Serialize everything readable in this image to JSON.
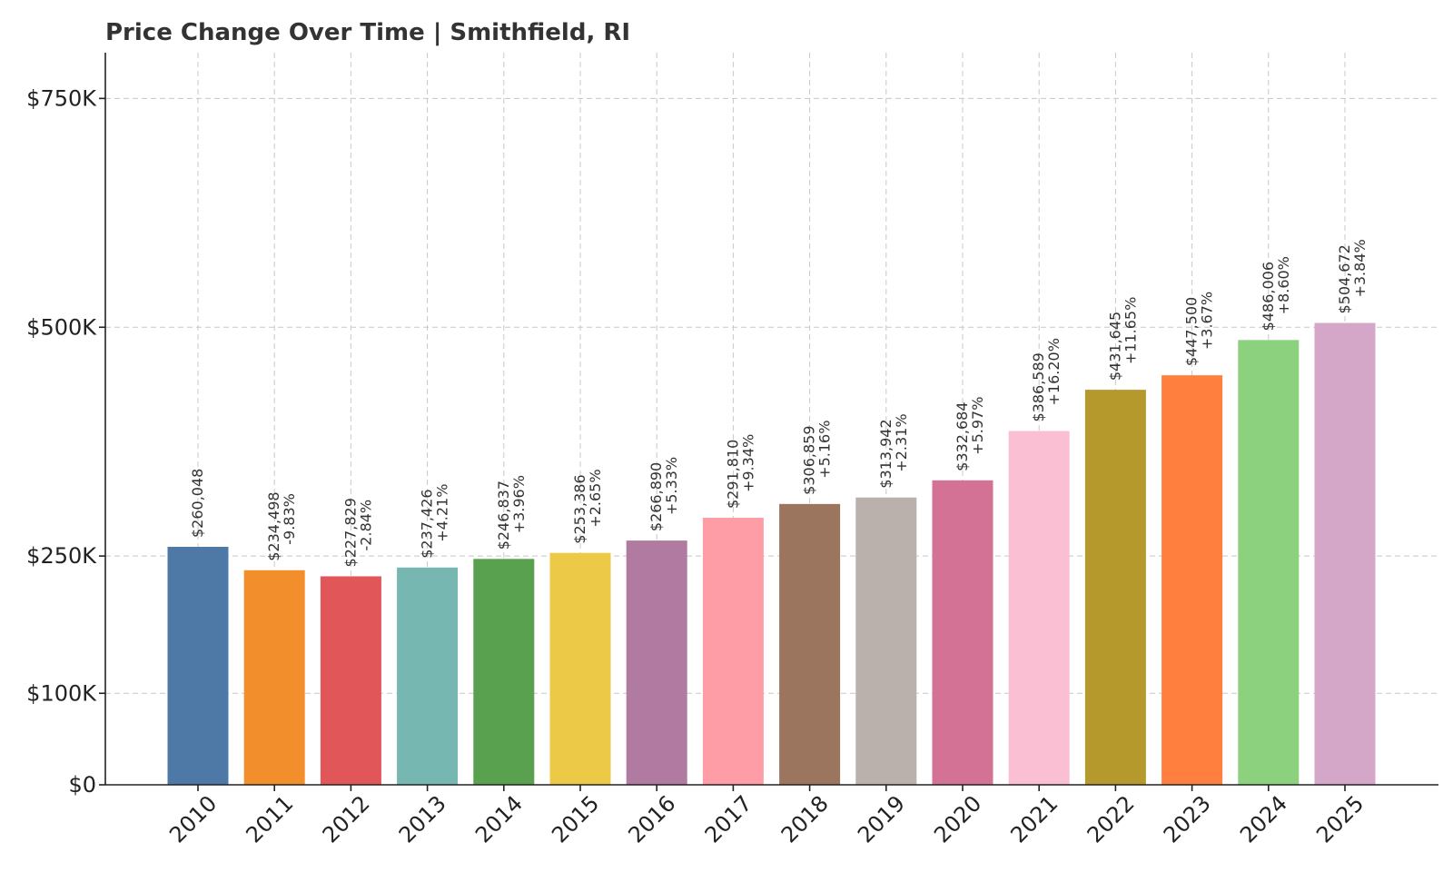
{
  "chart_data": {
    "type": "bar",
    "title": "Price Change Over Time | Smithfield, RI",
    "xlabel": "",
    "ylabel": "",
    "categories": [
      "2010",
      "2011",
      "2012",
      "2013",
      "2014",
      "2015",
      "2016",
      "2017",
      "2018",
      "2019",
      "2020",
      "2021",
      "2022",
      "2023",
      "2024",
      "2025"
    ],
    "values": [
      260048,
      234498,
      227829,
      237426,
      246837,
      253386,
      266890,
      291810,
      306859,
      313942,
      332684,
      386589,
      431645,
      447500,
      486006,
      504672
    ],
    "value_labels": [
      "$260,048",
      "$234,498",
      "$227,829",
      "$237,426",
      "$246,837",
      "$253,386",
      "$266,890",
      "$291,810",
      "$306,859",
      "$313,942",
      "$332,684",
      "$386,589",
      "$431,645",
      "$447,500",
      "$486,006",
      "$504,672"
    ],
    "change_labels": [
      "",
      "-9.83%",
      "-2.84%",
      "+4.21%",
      "+3.96%",
      "+2.65%",
      "+5.33%",
      "+9.34%",
      "+5.16%",
      "+2.31%",
      "+5.97%",
      "+16.20%",
      "+11.65%",
      "+3.67%",
      "+8.60%",
      "+3.84%"
    ],
    "colors": [
      "#4e79a7",
      "#f28e2b",
      "#e15759",
      "#76b7b2",
      "#59a14f",
      "#edc948",
      "#b07aa1",
      "#ff9da7",
      "#9c755f",
      "#bab0ac",
      "#d37295",
      "#fabfd2",
      "#b6992d",
      "#ff7f3f",
      "#8cd17d",
      "#d4a6c8"
    ],
    "ylim": [
      0,
      800000
    ],
    "yticks": [
      0,
      100000,
      250000,
      500000,
      750000
    ],
    "ytick_labels": [
      "$0",
      "$100K",
      "$250K",
      "$500K",
      "$750K"
    ],
    "grid": true,
    "legend": "none"
  }
}
